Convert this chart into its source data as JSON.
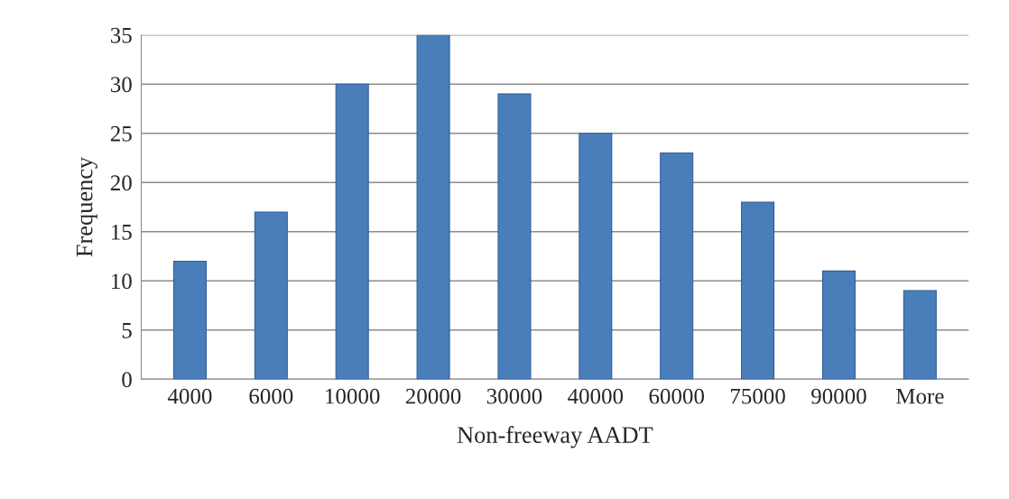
{
  "chart_data": {
    "type": "bar",
    "xlabel": "Non-freeway AADT",
    "ylabel": "Frequency",
    "categories": [
      "4000",
      "6000",
      "10000",
      "20000",
      "30000",
      "40000",
      "60000",
      "75000",
      "90000",
      "More"
    ],
    "values": [
      12,
      17,
      30,
      35,
      29,
      25,
      23,
      18,
      11,
      9
    ],
    "color": "#4a7ebb",
    "ylim": [
      0,
      35
    ],
    "yticks": [
      0,
      5,
      10,
      15,
      20,
      25,
      30,
      35
    ],
    "grid": "y"
  }
}
